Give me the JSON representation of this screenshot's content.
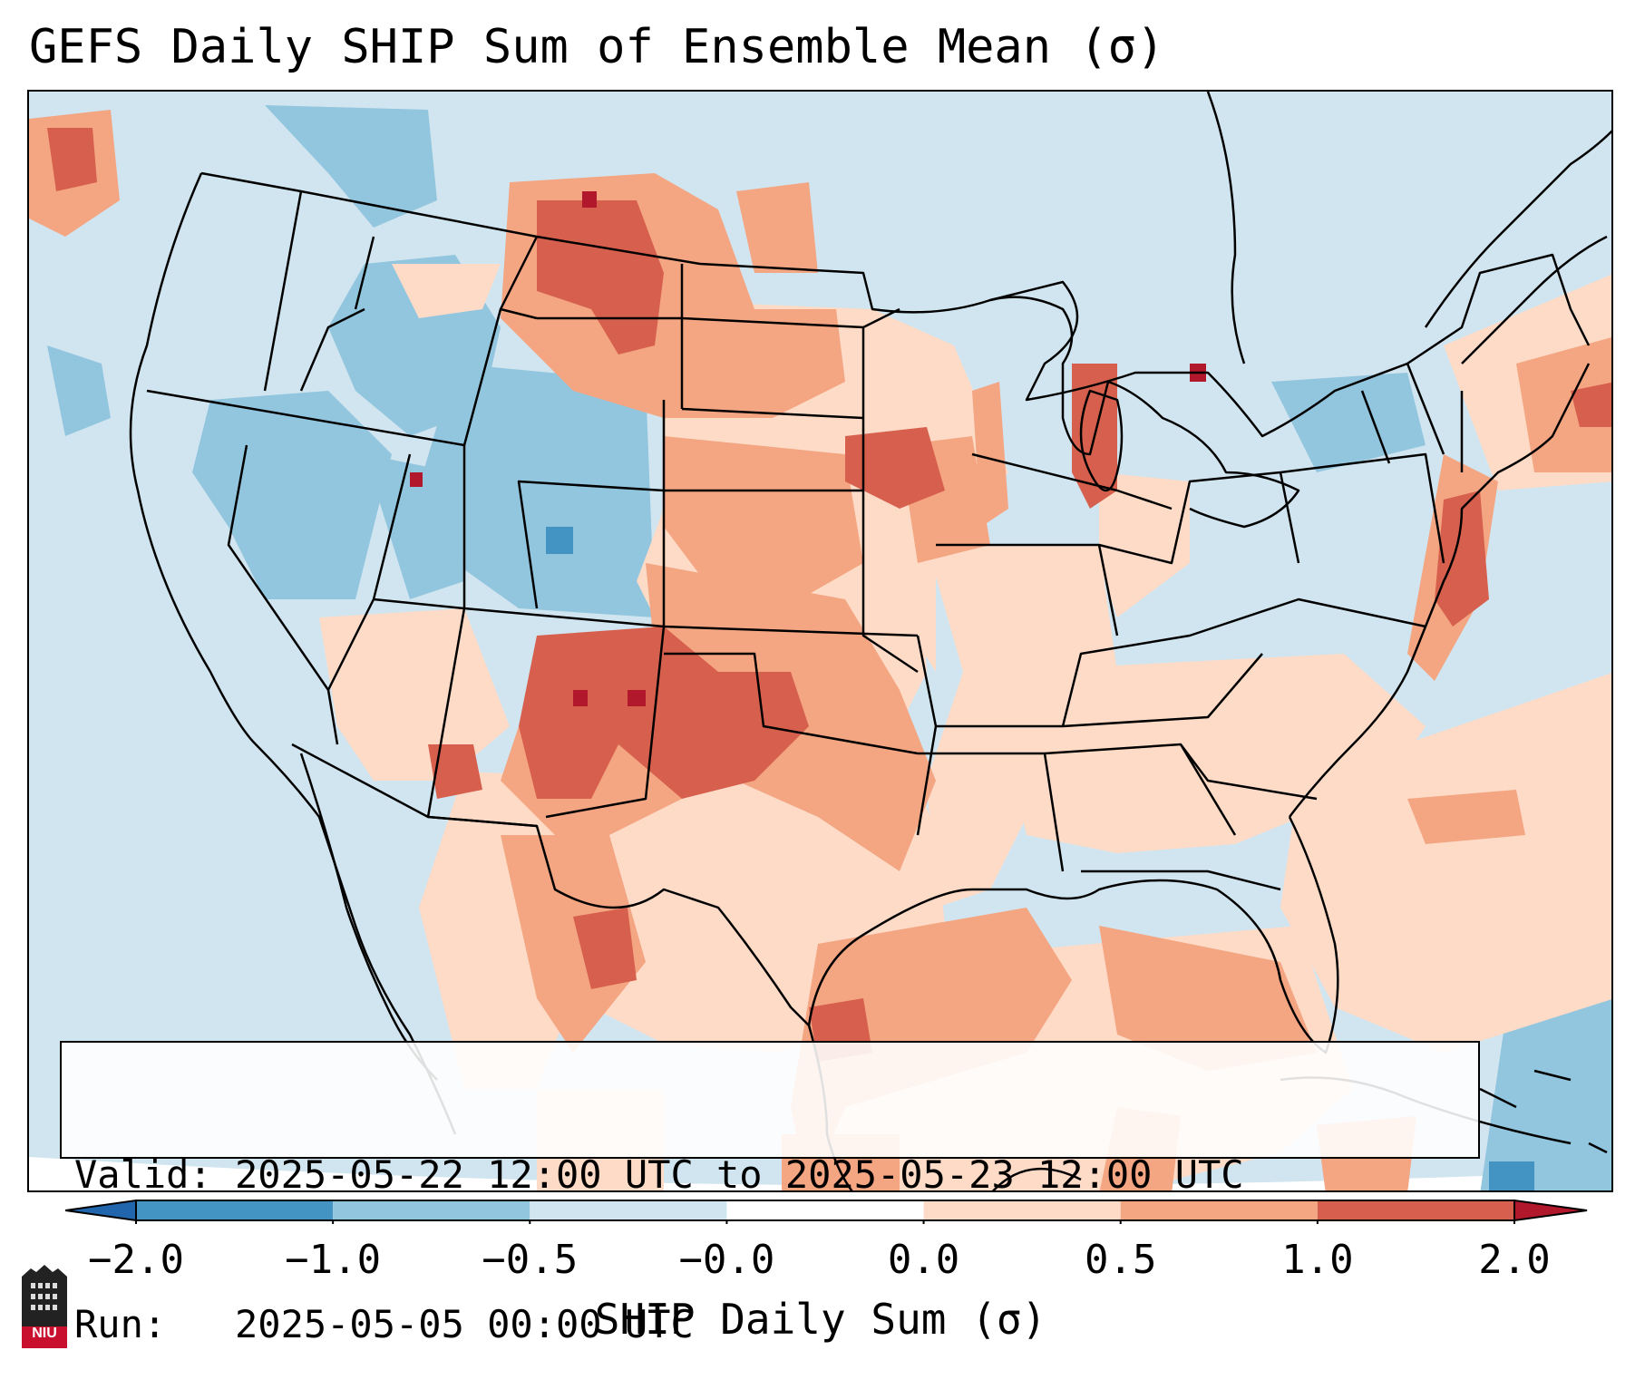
{
  "title": "GEFS Daily SHIP Sum of Ensemble Mean (σ)",
  "info": {
    "valid_line": "Valid: 2025-05-22 12:00 UTC to 2025-05-23 12:00 UTC",
    "run_line": "Run:   2025-05-05 00:00 UTC"
  },
  "colorbar": {
    "label": "SHIP Daily Sum (σ)",
    "ticks": [
      "−2.0",
      "−1.0",
      "−0.5",
      "−0.0",
      "0.0",
      "0.5",
      "1.0",
      "2.0"
    ],
    "colors": [
      "#4393c3",
      "#92c5de",
      "#d1e5f0",
      "#fddbc7",
      "#f4a582",
      "#d6604d"
    ],
    "extend_low": "#2166ac",
    "extend_high": "#b2182b"
  },
  "logo": {
    "text": "NIU"
  },
  "map": {
    "region": "Contiguous United States",
    "background_color": "#d1e5f0"
  }
}
